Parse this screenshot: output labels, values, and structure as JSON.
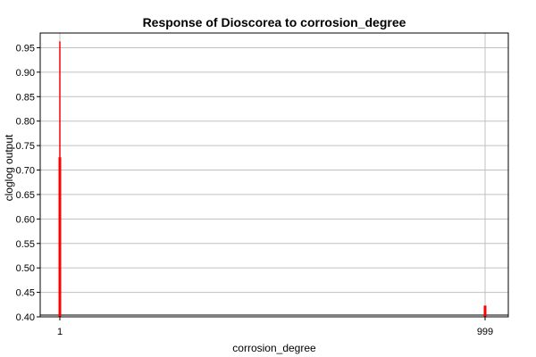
{
  "chart_data": {
    "type": "bar",
    "title": "Response of Dioscorea to corrosion_degree",
    "xlabel": "corrosion_degree",
    "ylabel": "cloglog output",
    "xlim": [
      1,
      999
    ],
    "ylim": [
      0.4,
      0.98
    ],
    "y_ticks": [
      "0.40",
      "0.45",
      "0.50",
      "0.55",
      "0.60",
      "0.65",
      "0.70",
      "0.75",
      "0.80",
      "0.85",
      "0.90",
      "0.95"
    ],
    "x_ticks": [
      "1",
      "999"
    ],
    "grid": true,
    "colors": {
      "bar": "#ff0000",
      "grid": "#c0c0c0",
      "axis": "#000000"
    },
    "series": [
      {
        "values": [
          {
            "x": 1,
            "y": 0.726
          },
          {
            "x": 1,
            "y": 0.963
          },
          {
            "x": 999,
            "y": 0.423
          }
        ]
      }
    ]
  }
}
